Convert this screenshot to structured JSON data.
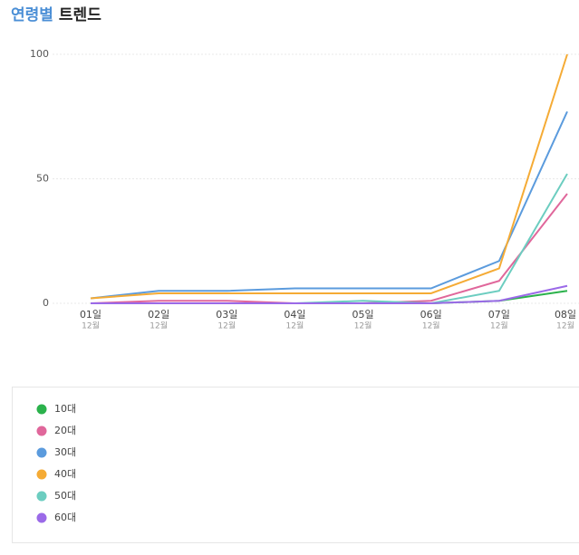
{
  "chart_data": {
    "type": "line",
    "title_prefix": "연령별",
    "title": "트렌드",
    "categories": [
      "01일",
      "02일",
      "03일",
      "04일",
      "05일",
      "06일",
      "07일",
      "08일"
    ],
    "category_sublabels": [
      "12월",
      "12월",
      "12월",
      "12월",
      "12월",
      "12월",
      "12월",
      "12월"
    ],
    "ylim": [
      0,
      100
    ],
    "yticks": [
      0,
      50,
      100
    ],
    "grid": true,
    "series": [
      {
        "name": "10대",
        "color": "#2bb24c",
        "values": [
          0,
          0,
          0,
          0,
          0,
          0,
          1,
          5
        ]
      },
      {
        "name": "20대",
        "color": "#e0679b",
        "values": [
          0,
          1,
          1,
          0,
          0,
          1,
          9,
          44
        ]
      },
      {
        "name": "30대",
        "color": "#5b9bdd",
        "values": [
          2,
          5,
          5,
          6,
          6,
          6,
          17,
          77
        ]
      },
      {
        "name": "40대",
        "color": "#f5ab35",
        "values": [
          2,
          4,
          4,
          4,
          4,
          4,
          14,
          100
        ]
      },
      {
        "name": "50대",
        "color": "#6ccdc0",
        "values": [
          0,
          0,
          0,
          0,
          1,
          0,
          5,
          52
        ]
      },
      {
        "name": "60대",
        "color": "#9b6ae8",
        "values": [
          0,
          0,
          0,
          0,
          0,
          0,
          1,
          7
        ]
      }
    ]
  }
}
